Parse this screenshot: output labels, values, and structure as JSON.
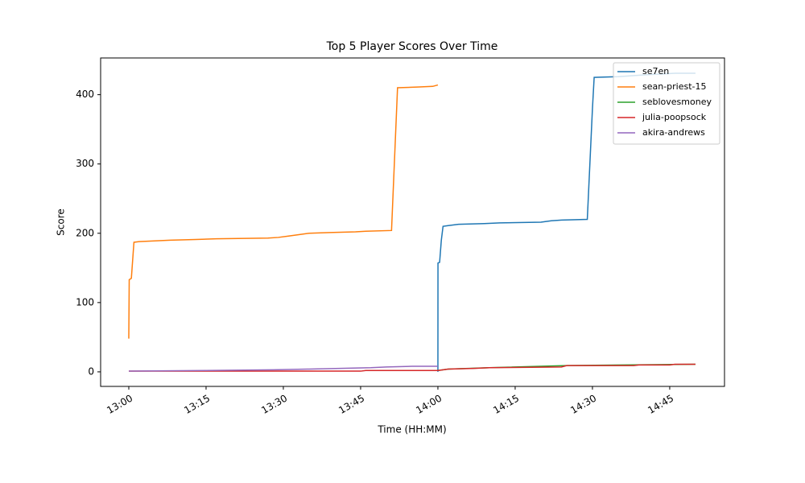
{
  "chart_data": {
    "type": "line",
    "title": "Top 5 Player Scores Over Time",
    "x_label": "Time (HH:MM)",
    "y_label": "Score",
    "xlim": [
      "12:54:32",
      "14:55:38"
    ],
    "ylim": [
      -21,
      453
    ],
    "xticks": [
      "13:00",
      "13:15",
      "13:30",
      "13:45",
      "14:00",
      "14:15",
      "14:30",
      "14:45"
    ],
    "yticks": [
      0,
      100,
      200,
      300,
      400
    ],
    "legend": "upper right",
    "series": [
      {
        "name": "se7en",
        "color": "#1f77b4",
        "x": [
          "14:00:00",
          "14:00:01",
          "14:00:20",
          "14:00:40",
          "14:01:00",
          "14:02:00",
          "14:04:00",
          "14:09:00",
          "14:12:00",
          "14:20:00",
          "14:22:00",
          "14:24:00",
          "14:29:00",
          "14:30:00",
          "14:30:20",
          "14:35:00",
          "14:39:00",
          "14:41:00",
          "14:44:00",
          "14:46:00",
          "14:50:00"
        ],
        "values": [
          0,
          157,
          158,
          190,
          210,
          211,
          213,
          214,
          215,
          216,
          218,
          219,
          220,
          380,
          425,
          426,
          428,
          429,
          430,
          431,
          431
        ]
      },
      {
        "name": "sean-priest-15",
        "color": "#ff7f0e",
        "x": [
          "13:00:00",
          "13:00:05",
          "13:00:30",
          "13:01:00",
          "13:02:00",
          "13:05:00",
          "13:08:00",
          "13:13:00",
          "13:17:00",
          "13:27:00",
          "13:29:00",
          "13:31:00",
          "13:33:00",
          "13:35:00",
          "13:39:00",
          "13:44:00",
          "13:46:00",
          "13:51:00",
          "13:52:10",
          "13:56:00",
          "13:59:00",
          "14:00:00"
        ],
        "values": [
          48,
          133,
          135,
          187,
          188,
          189,
          190,
          191,
          192,
          193,
          194,
          196,
          198,
          200,
          201,
          202,
          203,
          204,
          410,
          411,
          412,
          414
        ]
      },
      {
        "name": "seblovesmoney",
        "color": "#2ca02c",
        "x": [
          "14:00:00",
          "14:02:00",
          "14:10:00",
          "14:25:00",
          "14:50:00"
        ],
        "values": [
          2,
          4,
          6,
          9,
          11
        ]
      },
      {
        "name": "julia-poopsock",
        "color": "#d62728",
        "x": [
          "13:00:00",
          "13:45:00",
          "13:46:00",
          "14:00:00",
          "14:01:00",
          "14:02:00",
          "14:07:00",
          "14:10:00",
          "14:24:00",
          "14:25:00",
          "14:38:00",
          "14:39:00",
          "14:45:00",
          "14:46:00",
          "14:50:00"
        ],
        "values": [
          1,
          1,
          2,
          2,
          3,
          4,
          5,
          6,
          7,
          9,
          9,
          10,
          10,
          11,
          11
        ]
      },
      {
        "name": "akira-andrews",
        "color": "#9467bd",
        "x": [
          "13:00:00",
          "13:15:00",
          "13:28:00",
          "13:35:00",
          "13:41:00",
          "13:47:00",
          "13:50:00",
          "13:55:00",
          "14:00:00"
        ],
        "values": [
          1,
          2,
          3,
          4,
          5,
          6,
          7,
          8,
          8
        ]
      }
    ]
  }
}
